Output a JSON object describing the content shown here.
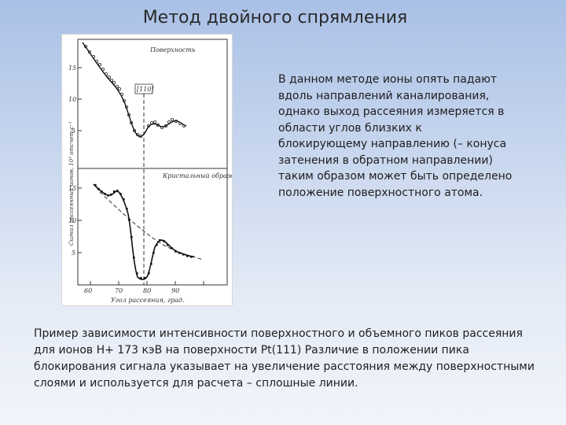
{
  "slide": {
    "title": "Метод двойного спрямления",
    "right_text": "В данном методе ионы опять падают вдоль направлений каналирования, однако выход рассеяния измеряется в области углов близких к блокирующему направлению (– конуса затенения в обратном направлении) таким образом может быть определено положение поверхностного атома.",
    "bottom_text": "Пример зависимости интенсивности поверхностного и объемного пиков рассеяния для ионов Н+ 173 кэВ на поверхности Pt(111) Различие в положении пика блокирования сигнала указывает на увеличение расстояния между поверхностными слоями и используется для расчета – сплошные линии."
  },
  "figure": {
    "top_panel_label": "Поверхность",
    "bottom_panel_label": "Кристальный образец",
    "axis_marker": "[110]",
    "y_axis_label": "Сигнал рассеянных ионов, 10³ отсчет·с⁻¹",
    "x_axis_label": "Угол рассеяния, град.",
    "x_ticks": [
      "60",
      "70",
      "80",
      "90"
    ],
    "y_ticks_top": [
      "15",
      "10",
      "5"
    ],
    "y_ticks_bottom": [
      "15",
      "10",
      "5"
    ]
  }
}
